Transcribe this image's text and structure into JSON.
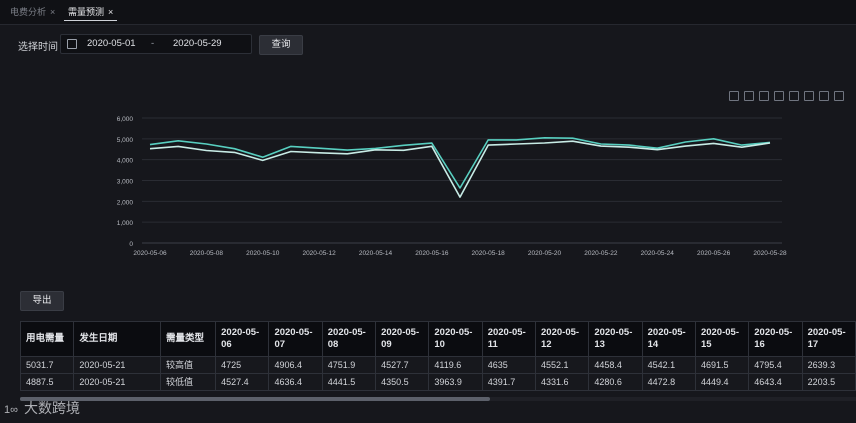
{
  "tabs": [
    {
      "label": "电费分析",
      "close": "×"
    },
    {
      "label": "需量预测",
      "close": "×"
    }
  ],
  "filter": {
    "label": "选择时间",
    "start_date": "2020-05-01",
    "separator": "-",
    "end_date": "2020-05-29",
    "query_label": "查询"
  },
  "export_label": "导出",
  "chart_data": {
    "type": "line",
    "x": [
      "2020-05-06",
      "2020-05-07",
      "2020-05-08",
      "2020-05-09",
      "2020-05-10",
      "2020-05-11",
      "2020-05-12",
      "2020-05-13",
      "2020-05-14",
      "2020-05-15",
      "2020-05-16",
      "2020-05-17",
      "2020-05-18",
      "2020-05-19",
      "2020-05-20",
      "2020-05-21",
      "2020-05-22",
      "2020-05-23",
      "2020-05-24",
      "2020-05-25",
      "2020-05-26",
      "2020-05-27",
      "2020-05-28"
    ],
    "x_tick_labels": [
      "2020-05-06",
      "2020-05-08",
      "2020-05-10",
      "2020-05-12",
      "2020-05-14",
      "2020-05-16",
      "2020-05-18",
      "2020-05-20",
      "2020-05-22",
      "2020-05-24",
      "2020-05-26",
      "2020-05-28"
    ],
    "y_ticks": [
      "0",
      "1,000",
      "2,000",
      "3,000",
      "4,000",
      "5,000",
      "6,000"
    ],
    "ylim": [
      0,
      6000
    ],
    "series": [
      {
        "values": [
          4725,
          4906.4,
          4751.9,
          4527.7,
          4119.6,
          4635,
          4552.1,
          4458.4,
          4542.1,
          4691.5,
          4795.4,
          2639.3,
          4950,
          4950,
          5050,
          5031.7,
          4750,
          4700,
          4550,
          4850,
          5000,
          4700,
          4830
        ],
        "color": "#58cfc0"
      },
      {
        "values": [
          4527.4,
          4636.4,
          4441.5,
          4350.5,
          3963.9,
          4391.7,
          4331.6,
          4280.6,
          4472.8,
          4449.4,
          4643.4,
          2203.5,
          4700,
          4750,
          4800,
          4887.5,
          4650,
          4600,
          4480,
          4650,
          4780,
          4600,
          4800
        ],
        "color": "#c8ece6"
      }
    ]
  },
  "table": {
    "headers": [
      "用电需量",
      "发生日期",
      "需量类型",
      "2020-05-06",
      "2020-05-07",
      "2020-05-08",
      "2020-05-09",
      "2020-05-10",
      "2020-05-11",
      "2020-05-12",
      "2020-05-13",
      "2020-05-14",
      "2020-05-15",
      "2020-05-16",
      "2020-05-17"
    ],
    "rows": [
      [
        "5031.7",
        "2020-05-21",
        "较高值",
        "4725",
        "4906.4",
        "4751.9",
        "4527.7",
        "4119.6",
        "4635",
        "4552.1",
        "4458.4",
        "4542.1",
        "4691.5",
        "4795.4",
        "2639.3"
      ],
      [
        "4887.5",
        "2020-05-21",
        "较低值",
        "4527.4",
        "4636.4",
        "4441.5",
        "4350.5",
        "3963.9",
        "4391.7",
        "4331.6",
        "4280.6",
        "4472.8",
        "4449.4",
        "4643.4",
        "2203.5"
      ]
    ]
  },
  "watermark": {
    "logo": "1∞",
    "text": "大数跨境"
  }
}
